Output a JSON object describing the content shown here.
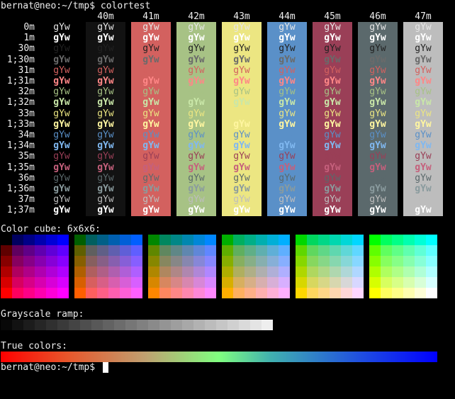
{
  "terminal": {
    "prompt_command": "bernat@neo:~/tmp$ colortest",
    "prompt_end": "bernat@neo:~/tmp$ ",
    "cube_title": "Color cube: 6x6x6:",
    "gray_title": "Grayscale ramp:",
    "true_title": "True colors:"
  },
  "sample_text": "gYw",
  "bg_headers": [
    "40m",
    "41m",
    "42m",
    "43m",
    "44m",
    "45m",
    "46m",
    "47m"
  ],
  "bg_colors": [
    "#121212",
    "#d3615f",
    "#a7c285",
    "#ece682",
    "#5a90c8",
    "#9a3f57",
    "#5b696c",
    "#bdbdbd"
  ],
  "row_labels": [
    "0m",
    "1m",
    "30m",
    "1;30m",
    "31m",
    "1;31m",
    "32m",
    "1;32m",
    "33m",
    "1;33m",
    "34m",
    "1;34m",
    "35m",
    "1;35m",
    "36m",
    "1;36m",
    "37m",
    "1;37m"
  ],
  "fg_colors": [
    "#e6e6e6",
    "#ffffff",
    "#222222",
    "#6a6a6a",
    "#d3615f",
    "#ff8787",
    "#a7c285",
    "#c9e7a8",
    "#ece682",
    "#fff6a0",
    "#5a90c8",
    "#80b8f0",
    "#9a3f57",
    "#c5607c",
    "#5b696c",
    "#8a9b9e",
    "#bdbdbd",
    "#ffffff"
  ],
  "cube_levels": [
    0,
    95,
    135,
    175,
    215,
    255
  ],
  "gray_levels": [
    8,
    18,
    28,
    38,
    48,
    58,
    68,
    78,
    88,
    98,
    108,
    118,
    128,
    138,
    148,
    158,
    168,
    178,
    188,
    198,
    208,
    218,
    228,
    238
  ]
}
